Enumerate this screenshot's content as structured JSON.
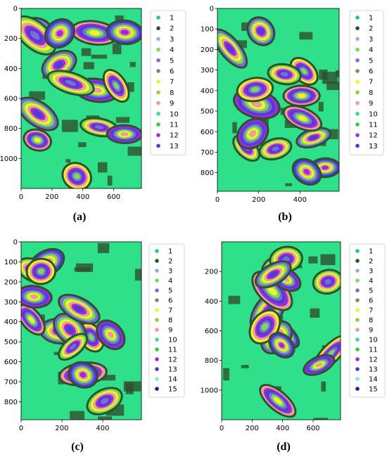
{
  "figure": {
    "colors": {
      "1": "#1fc79b",
      "2": "#2f4f2f",
      "3": "#8fb3e8",
      "4": "#7bd957",
      "5": "#7b6bd6",
      "6": "#7b8a6b",
      "7": "#f2f22f",
      "8": "#9acd32",
      "9": "#e8a090",
      "10": "#2ee08a",
      "11": "#32cd32",
      "12": "#9a2ed6",
      "13": "#4b3cd6",
      "14": "#7fe8f0",
      "15": "#1a1aa6"
    }
  },
  "chart_data": [
    {
      "type": "heatmap",
      "caption": "(a)",
      "xticks": [
        0,
        200,
        400,
        600
      ],
      "yticks": [
        0,
        200,
        400,
        600,
        800,
        1000
      ],
      "xlim": [
        0,
        780
      ],
      "ylim": [
        1200,
        0
      ],
      "legend": [
        "1",
        "2",
        "3",
        "4",
        "5",
        "6",
        "7",
        "8",
        "9",
        "10",
        "11",
        "12",
        "13"
      ],
      "legend_position": "right"
    },
    {
      "type": "heatmap",
      "caption": "(b)",
      "xticks": [
        0,
        200,
        400
      ],
      "yticks": [
        0,
        100,
        200,
        300,
        400,
        500,
        600,
        700,
        800
      ],
      "xlim": [
        0,
        590
      ],
      "ylim": [
        890,
        0
      ],
      "legend": [
        "1",
        "2",
        "3",
        "4",
        "5",
        "6",
        "7",
        "8",
        "9",
        "10",
        "11",
        "12",
        "13"
      ],
      "legend_position": "right"
    },
    {
      "type": "heatmap",
      "caption": "(c)",
      "xticks": [
        0,
        200,
        400
      ],
      "yticks": [
        0,
        100,
        200,
        300,
        400,
        500,
        600,
        700,
        800
      ],
      "xlim": [
        0,
        590
      ],
      "ylim": [
        890,
        0
      ],
      "legend": [
        "1",
        "2",
        "3",
        "4",
        "5",
        "6",
        "7",
        "8",
        "9",
        "10",
        "11",
        "12",
        "13",
        "14",
        "15"
      ],
      "legend_position": "right"
    },
    {
      "type": "heatmap",
      "caption": "(d)",
      "xticks": [
        0,
        200,
        400,
        600
      ],
      "yticks": [
        200,
        400,
        600,
        800,
        1000
      ],
      "xlim": [
        0,
        780
      ],
      "ylim": [
        1200,
        0
      ],
      "legend": [
        "1",
        "2",
        "3",
        "4",
        "5",
        "6",
        "7",
        "8",
        "9",
        "10",
        "11",
        "12",
        "13",
        "14",
        "15"
      ],
      "legend_position": "right"
    }
  ]
}
